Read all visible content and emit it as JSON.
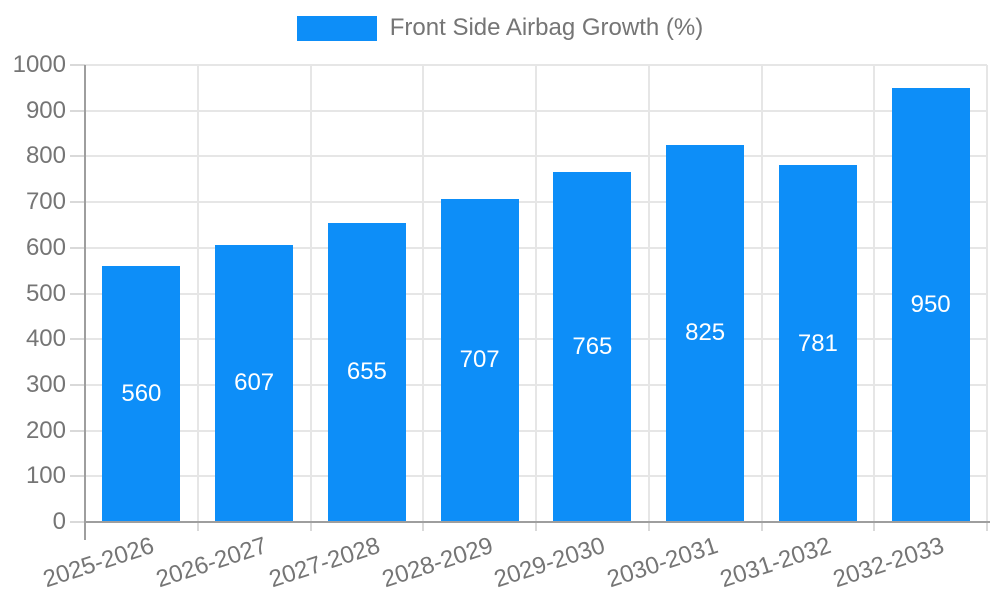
{
  "chart_data": {
    "type": "bar",
    "title": "Front Side Airbag Growth (%)",
    "legend_position": "top",
    "categories": [
      "2025-2026",
      "2026-2027",
      "2027-2028",
      "2028-2029",
      "2029-2030",
      "2030-2031",
      "2031-2032",
      "2032-2033"
    ],
    "values": [
      560,
      607,
      655,
      707,
      765,
      825,
      781,
      950
    ],
    "xlabel": "",
    "ylabel": "",
    "ylim": [
      0,
      1000
    ],
    "ytick_step": 100,
    "ytick_labels": [
      "0",
      "100",
      "200",
      "300",
      "400",
      "500",
      "600",
      "700",
      "800",
      "900",
      "1000"
    ],
    "grid": true,
    "value_labels_position": "inside-center",
    "colors": {
      "bar": "#0d8ef8",
      "axis_text": "#757575",
      "grid_line": "#e6e6e6",
      "axis_line": "#9e9e9e",
      "tick_line": "#d9d9d9",
      "value_label": "#ffffff",
      "background": "#ffffff"
    }
  }
}
